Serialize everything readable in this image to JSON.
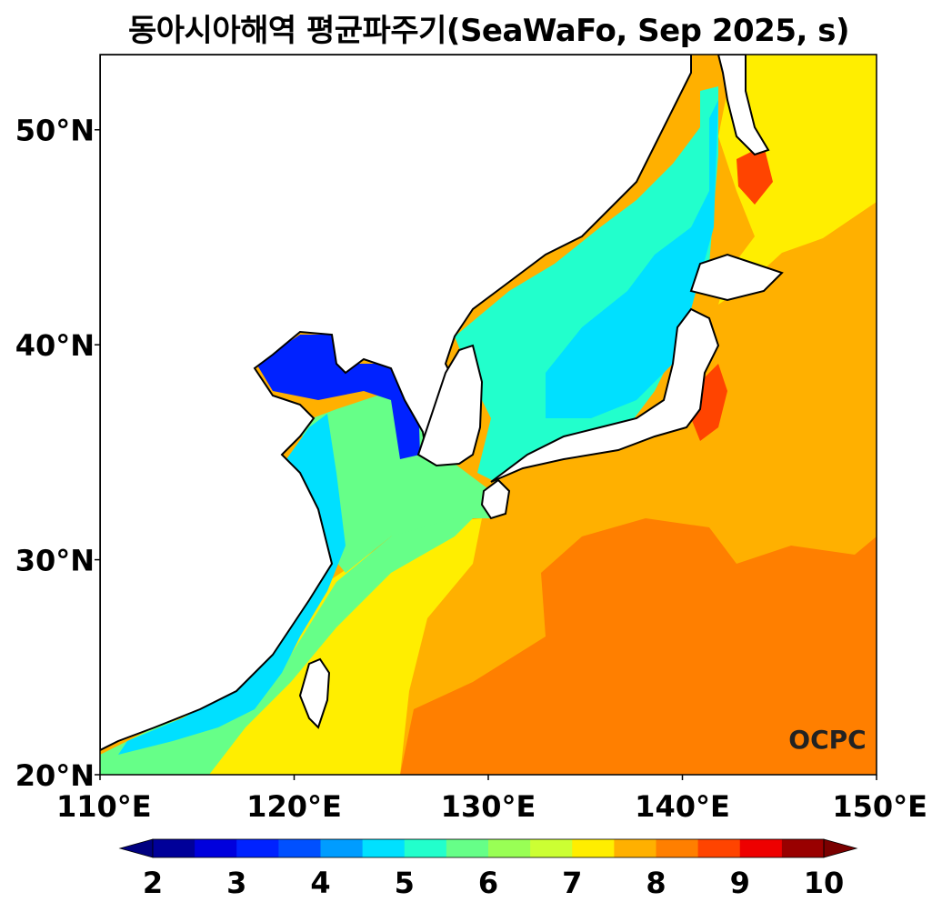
{
  "title": "동아시아해역 평균파주기(SeaWaFo, Sep 2025, s)",
  "map": {
    "lon_range": [
      110,
      150
    ],
    "lat_range": [
      20,
      53.5
    ],
    "lon_ticks": [
      {
        "value": 110,
        "label": "110°E"
      },
      {
        "value": 120,
        "label": "120°E"
      },
      {
        "value": 130,
        "label": "130°E"
      },
      {
        "value": 140,
        "label": "140°E"
      },
      {
        "value": 150,
        "label": "150°E"
      }
    ],
    "lat_ticks": [
      {
        "value": 20,
        "label": "20°N"
      },
      {
        "value": 30,
        "label": "30°N"
      },
      {
        "value": 40,
        "label": "40°N"
      },
      {
        "value": 50,
        "label": "50°N"
      }
    ],
    "watermark": "OCPC"
  },
  "colorbar": {
    "min": 2,
    "max": 10,
    "step": 0.5,
    "colors": [
      "#000099",
      "#0000dd",
      "#0022ff",
      "#0050ff",
      "#009cff",
      "#00e0ff",
      "#22ffcc",
      "#66ff88",
      "#99ff55",
      "#ccff33",
      "#ffee00",
      "#ffb000",
      "#ff7f00",
      "#ff4400",
      "#ee0000",
      "#990000"
    ],
    "under_color": "#000080",
    "over_color": "#7a0000",
    "tick_labels": [
      "2",
      "3",
      "4",
      "5",
      "6",
      "7",
      "8",
      "9",
      "10"
    ]
  },
  "field_colors": {
    "land": "#ffffff",
    "open_ocean": "#ffb000",
    "high_period": "#ff7f00",
    "coast_high": "#ff4400",
    "ocean_north": "#ffee00",
    "east_sea": "#22ffcc",
    "east_sea_core": "#00e0ff",
    "yellow_sea": "#66ff88",
    "bohai": "#0022ff",
    "china_coast": "#00e0ff"
  }
}
